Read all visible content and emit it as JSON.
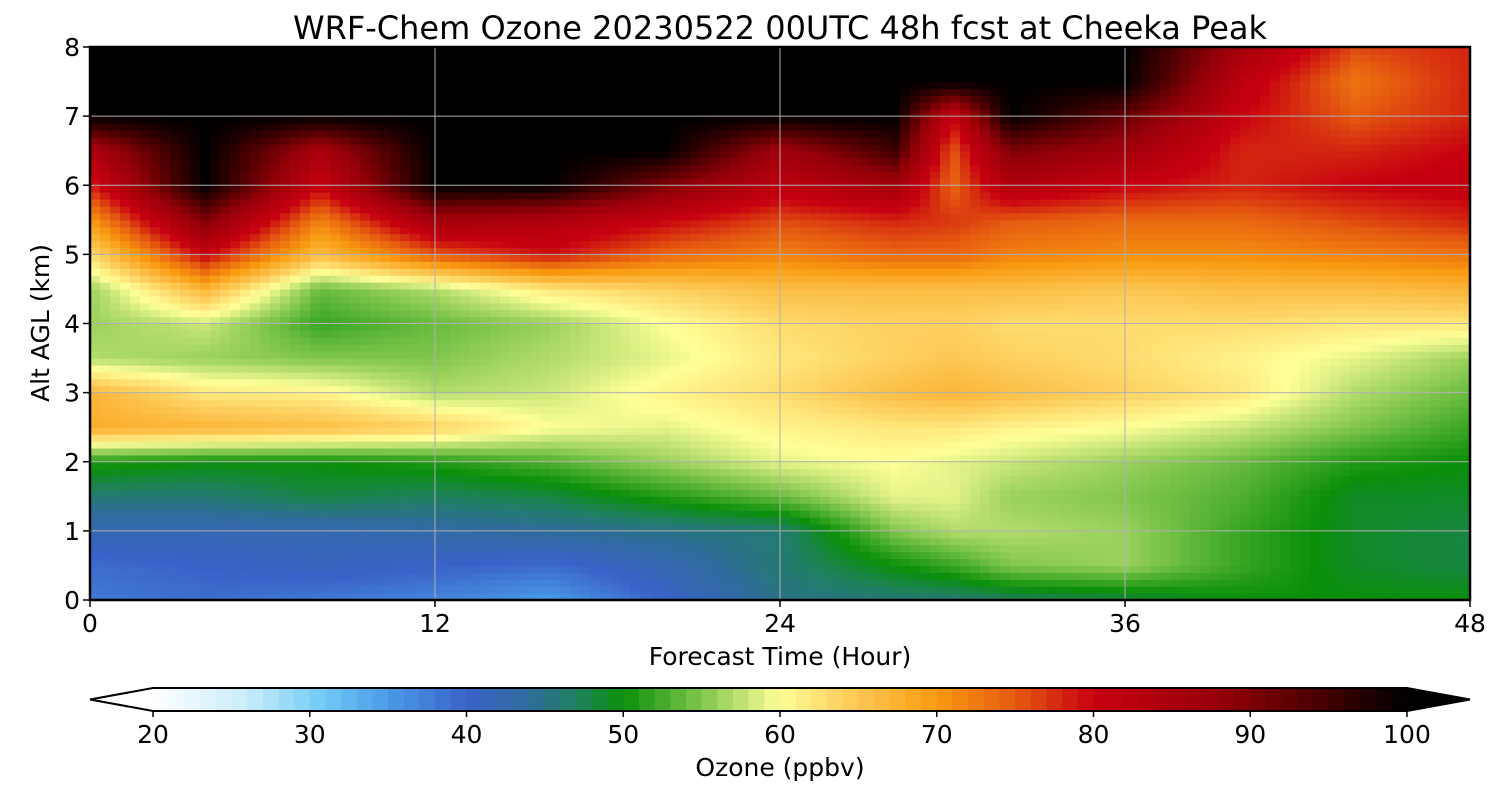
{
  "chart_data": {
    "type": "heatmap",
    "title": "WRF-Chem Ozone  20230522 00UTC 48h fcst at Cheeka Peak",
    "xlabel": "Forecast Time (Hour)",
    "ylabel": "Alt AGL (km)",
    "xlim": [
      0,
      48
    ],
    "ylim": [
      0,
      8
    ],
    "x_ticks": [
      "0",
      "12",
      "24",
      "36",
      "48"
    ],
    "y_ticks": [
      "0",
      "1",
      "2",
      "3",
      "4",
      "5",
      "6",
      "7",
      "8"
    ],
    "grid": true,
    "x_hours": [
      0,
      4,
      8,
      12,
      16,
      20,
      24,
      28,
      30,
      32,
      36,
      40,
      44,
      48
    ],
    "z_km": [
      0,
      0.5,
      1,
      1.5,
      2,
      2.5,
      3,
      3.5,
      4,
      4.5,
      5,
      5.5,
      6,
      6.5,
      7,
      7.5,
      8
    ],
    "ozone_ppbv": [
      [
        38,
        39,
        38,
        37,
        35,
        40,
        45,
        46,
        46,
        47,
        48,
        50,
        50,
        50
      ],
      [
        39,
        40,
        41,
        40,
        39,
        42,
        46,
        50,
        52,
        55,
        56,
        52,
        49,
        48
      ],
      [
        42,
        42,
        42,
        43,
        44,
        45,
        46,
        55,
        57,
        57,
        56,
        52,
        49,
        48
      ],
      [
        46,
        46,
        48,
        47,
        48,
        51,
        54,
        59,
        59,
        56,
        55,
        53,
        49,
        49
      ],
      [
        51,
        50,
        50,
        51,
        53,
        56,
        59,
        60,
        59,
        58,
        56,
        54,
        51,
        50
      ],
      [
        68,
        67,
        66,
        64,
        60,
        59,
        61,
        62,
        62,
        61,
        60,
        58,
        55,
        52
      ],
      [
        67,
        62,
        61,
        57,
        58,
        61,
        63,
        66,
        67,
        66,
        64,
        62,
        57,
        54
      ],
      [
        57,
        56,
        55,
        55,
        57,
        59,
        62,
        64,
        65,
        64,
        63,
        61,
        59,
        56
      ],
      [
        56,
        58,
        52,
        54,
        56,
        60,
        63,
        64,
        64,
        63,
        63,
        63,
        62,
        62
      ],
      [
        56,
        67,
        54,
        57,
        62,
        64,
        66,
        66,
        66,
        66,
        65,
        66,
        66,
        67
      ],
      [
        63,
        80,
        66,
        75,
        79,
        74,
        72,
        74,
        74,
        72,
        71,
        71,
        72,
        73
      ],
      [
        70,
        90,
        72,
        86,
        84,
        80,
        76,
        78,
        77,
        75,
        74,
        74,
        76,
        78
      ],
      [
        78,
        100,
        80,
        100,
        100,
        90,
        82,
        86,
        74,
        84,
        80,
        78,
        80,
        81
      ],
      [
        84,
        100,
        85,
        100,
        100,
        100,
        86,
        95,
        75,
        90,
        86,
        78,
        78,
        80
      ],
      [
        100,
        100,
        100,
        100,
        100,
        100,
        100,
        100,
        80,
        100,
        92,
        80,
        75,
        78
      ],
      [
        100,
        100,
        100,
        100,
        100,
        100,
        100,
        100,
        100,
        100,
        100,
        82,
        73,
        78
      ],
      [
        100,
        100,
        100,
        100,
        100,
        100,
        100,
        100,
        100,
        100,
        100,
        86,
        76,
        78
      ]
    ],
    "colorbar": {
      "label": "Ozone  (ppbv)",
      "ticks": [
        "20",
        "30",
        "40",
        "50",
        "60",
        "70",
        "80",
        "90",
        "100"
      ],
      "range": [
        20,
        100
      ],
      "extend": "both",
      "colors": [
        {
          "v": 20,
          "c": "#ffffff"
        },
        {
          "v": 26,
          "c": "#c8ecfb"
        },
        {
          "v": 31,
          "c": "#6ec9f5"
        },
        {
          "v": 35,
          "c": "#4a9be8"
        },
        {
          "v": 40,
          "c": "#3a62c8"
        },
        {
          "v": 44,
          "c": "#2f6c9b"
        },
        {
          "v": 47,
          "c": "#1f8060"
        },
        {
          "v": 50,
          "c": "#0a8f0a"
        },
        {
          "v": 53,
          "c": "#50b030"
        },
        {
          "v": 57,
          "c": "#b2dc6a"
        },
        {
          "v": 60,
          "c": "#ffff99"
        },
        {
          "v": 64,
          "c": "#fdd060"
        },
        {
          "v": 70,
          "c": "#f99a10"
        },
        {
          "v": 75,
          "c": "#e55a10"
        },
        {
          "v": 80,
          "c": "#c70010"
        },
        {
          "v": 88,
          "c": "#960008"
        },
        {
          "v": 95,
          "c": "#400000"
        },
        {
          "v": 100,
          "c": "#000000"
        }
      ]
    }
  }
}
